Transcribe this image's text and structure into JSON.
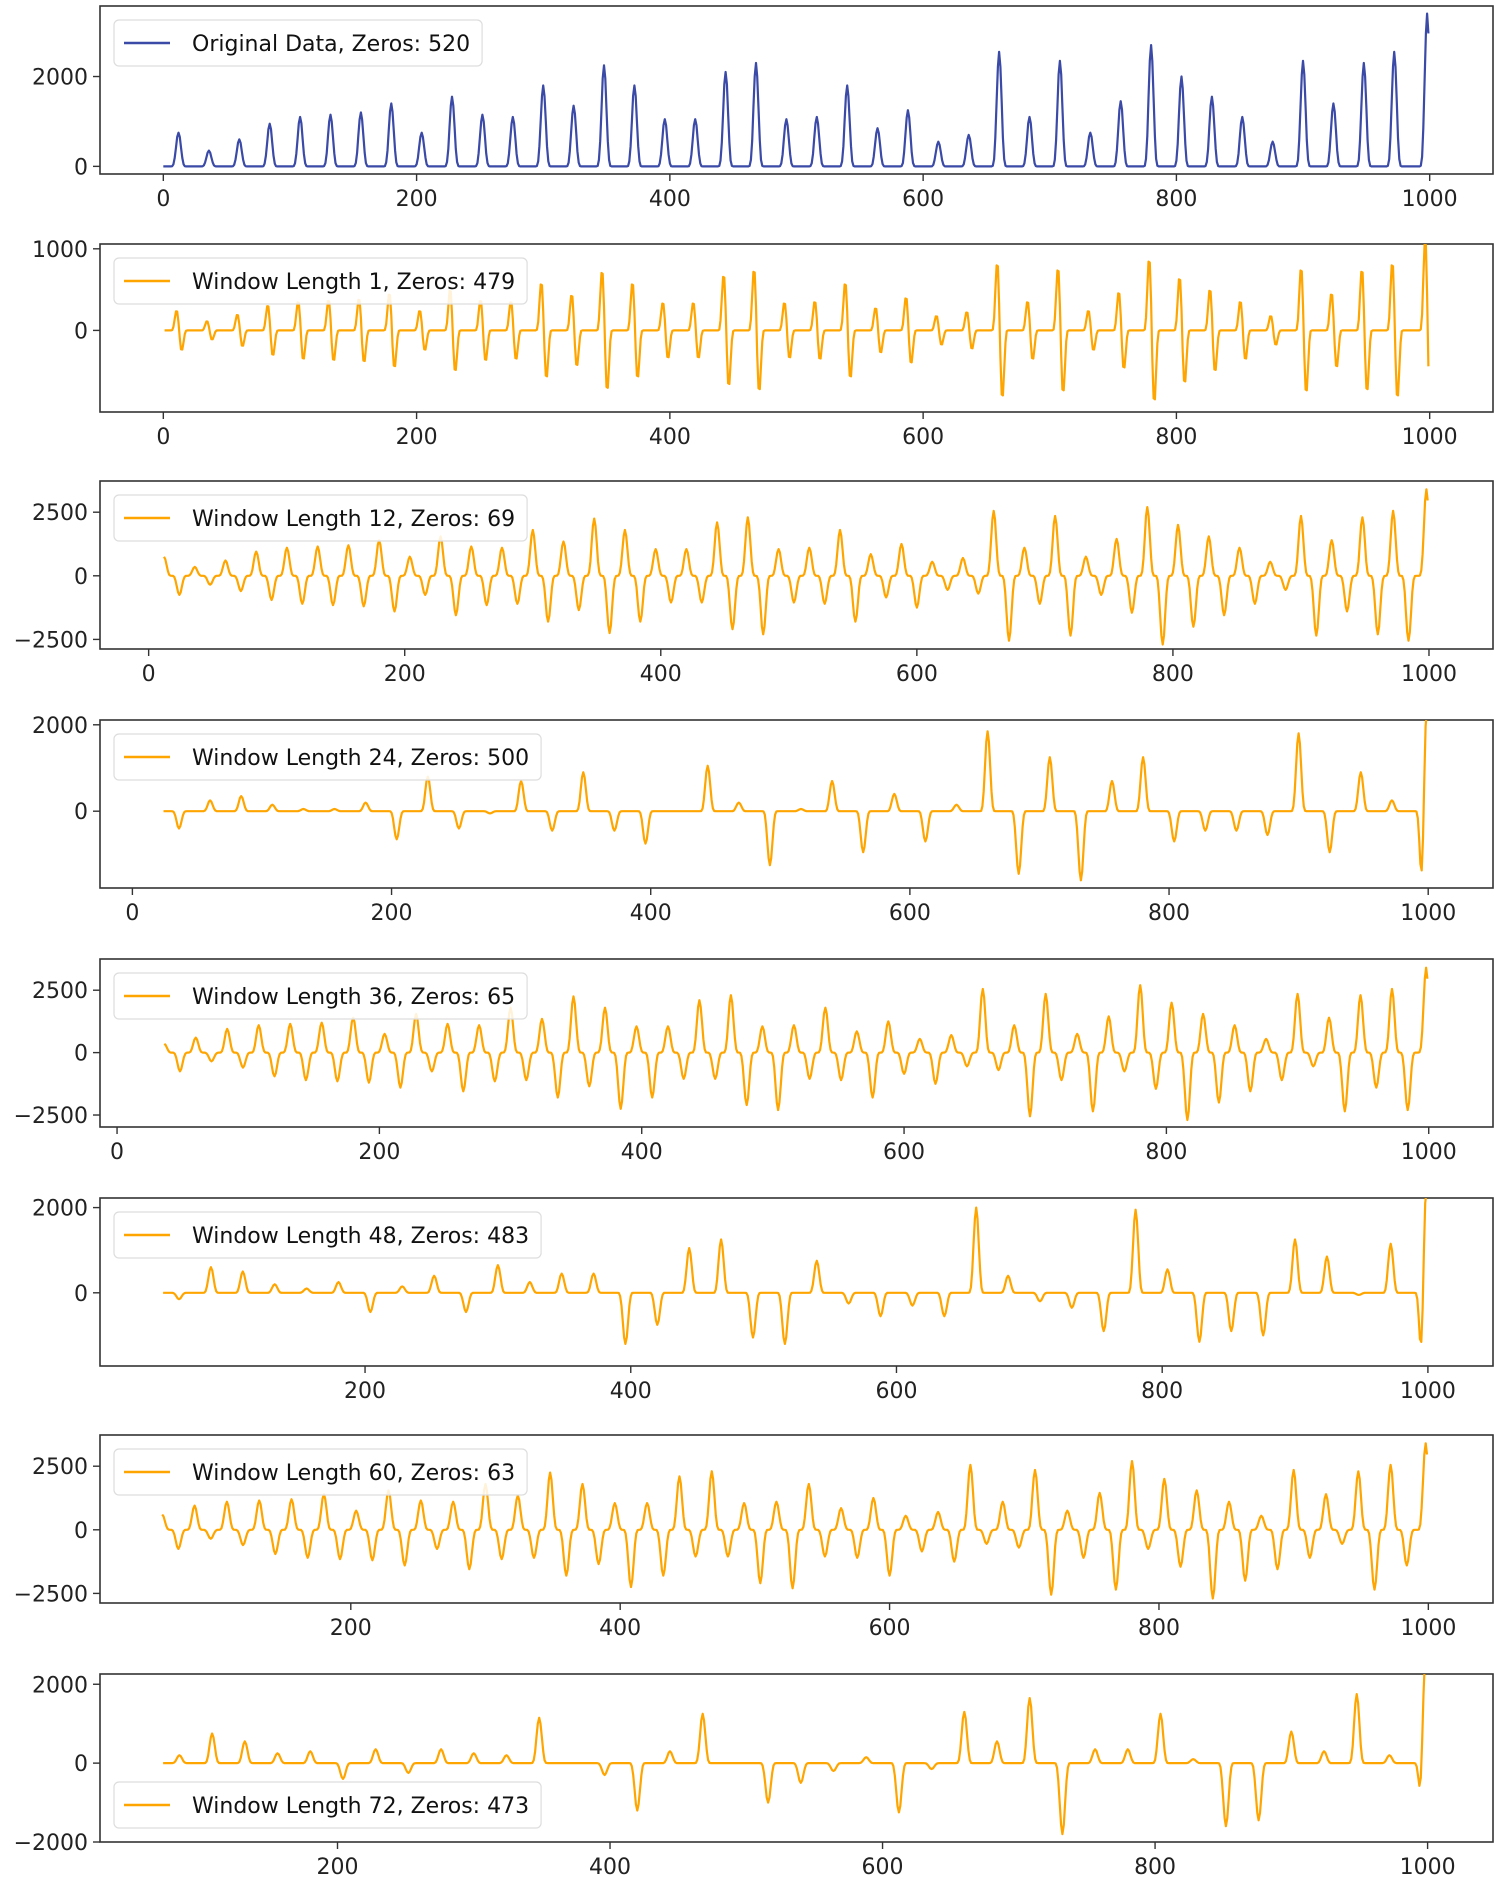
{
  "chart_data": {
    "type": "line",
    "layout": "8 stacked subplots",
    "grid": false,
    "colors": {
      "original": "#3a4aa6",
      "windowed": "#ffa500"
    },
    "original_peaks": {
      "x": [
        12,
        36,
        60,
        84,
        108,
        132,
        156,
        180,
        204,
        228,
        252,
        276,
        300,
        324,
        348,
        372,
        396,
        420,
        444,
        468,
        492,
        516,
        540,
        564,
        588,
        612,
        636,
        660,
        684,
        708,
        732,
        756,
        780,
        804,
        828,
        852,
        876,
        900,
        924,
        948,
        972,
        998
      ],
      "height": [
        750,
        350,
        600,
        950,
        1100,
        1150,
        1200,
        1400,
        750,
        1550,
        1150,
        1100,
        1800,
        1350,
        2250,
        1800,
        1050,
        1050,
        2100,
        2300,
        1050,
        1100,
        1800,
        850,
        1250,
        550,
        700,
        2550,
        1100,
        2350,
        750,
        1450,
        2700,
        2000,
        1550,
        1100,
        550,
        2350,
        1400,
        2300,
        2550,
        3400
      ]
    },
    "x_range": [
      0,
      1000
    ],
    "panels": [
      {
        "legend": "Original Data, Zeros: 520",
        "window": 0,
        "legend_loc": "upper-left",
        "xlim": [
          -50,
          1050
        ],
        "ylim": [
          -170,
          3570
        ],
        "xticks": [
          0,
          200,
          400,
          600,
          800,
          1000
        ],
        "xtick_labels": [
          "0",
          "200",
          "400",
          "600",
          "800",
          "1000"
        ],
        "yticks": [
          0,
          2000
        ],
        "ytick_labels": [
          "0",
          "2000"
        ]
      },
      {
        "legend": "Window Length 1, Zeros: 479",
        "window": 1,
        "legend_loc": "upper-left",
        "xlim": [
          -50,
          1050
        ],
        "ylim": [
          -1000,
          1059
        ],
        "xticks": [
          0,
          200,
          400,
          600,
          800,
          1000
        ],
        "xtick_labels": [
          "0",
          "200",
          "400",
          "600",
          "800",
          "1000"
        ],
        "yticks": [
          0,
          1000
        ],
        "ytick_labels": [
          "0",
          "1000"
        ]
      },
      {
        "legend": "Window Length 12, Zeros: 69",
        "window": 12,
        "legend_loc": "upper-left",
        "xlim": [
          -38,
          1050
        ],
        "ylim": [
          -2877,
          3726
        ],
        "xticks": [
          0,
          200,
          400,
          600,
          800,
          1000
        ],
        "xtick_labels": [
          "0",
          "200",
          "400",
          "600",
          "800",
          "1000"
        ],
        "yticks": [
          -2500,
          0,
          2500
        ],
        "ytick_labels": [
          "−2500",
          "0",
          "2500"
        ]
      },
      {
        "legend": "Window Length 24, Zeros: 500",
        "window": 24,
        "legend_loc": "upper-left",
        "xlim": [
          -25,
          1050
        ],
        "ylim": [
          -1778,
          2111
        ],
        "xticks": [
          0,
          200,
          400,
          600,
          800,
          1000
        ],
        "xtick_labels": [
          "0",
          "200",
          "400",
          "600",
          "800",
          "1000"
        ],
        "yticks": [
          0,
          2000
        ],
        "ytick_labels": [
          "0",
          "2000"
        ]
      },
      {
        "legend": "Window Length 36, Zeros: 65",
        "window": 36,
        "legend_loc": "upper-left",
        "xlim": [
          -13,
          1049
        ],
        "ylim": [
          -2980,
          3750
        ],
        "xticks": [
          0,
          200,
          400,
          600,
          800,
          1000
        ],
        "xtick_labels": [
          "0",
          "200",
          "400",
          "600",
          "800",
          "1000"
        ],
        "yticks": [
          -2500,
          0,
          2500
        ],
        "ytick_labels": [
          "−2500",
          "0",
          "2500"
        ]
      },
      {
        "legend": "Window Length 48, Zeros: 483",
        "window": 48,
        "legend_loc": "upper-left",
        "xlim": [
          0.5,
          1049
        ],
        "ylim": [
          -1718,
          2225
        ],
        "xticks": [
          200,
          400,
          600,
          800,
          1000
        ],
        "xtick_labels": [
          "200",
          "400",
          "600",
          "800",
          "1000"
        ],
        "yticks": [
          0,
          2000
        ],
        "ytick_labels": [
          "0",
          "2000"
        ]
      },
      {
        "legend": "Window Length 60, Zeros: 63",
        "window": 60,
        "legend_loc": "upper-left",
        "xlim": [
          13.8,
          1048
        ],
        "ylim": [
          -2877,
          3726
        ],
        "xticks": [
          200,
          400,
          600,
          800,
          1000
        ],
        "xtick_labels": [
          "200",
          "400",
          "600",
          "800",
          "1000"
        ],
        "yticks": [
          -2500,
          0,
          2500
        ],
        "ytick_labels": [
          "−2500",
          "0",
          "2500"
        ]
      },
      {
        "legend": "Window Length 72, Zeros: 473",
        "window": 72,
        "legend_loc": "lower-left",
        "xlim": [
          25.7,
          1048
        ],
        "ylim": [
          -2000,
          2260
        ],
        "xticks": [
          200,
          400,
          600,
          800,
          1000
        ],
        "xtick_labels": [
          "200",
          "400",
          "600",
          "800",
          "1000"
        ],
        "yticks": [
          -2000,
          0,
          2000
        ],
        "ytick_labels": [
          "−2000",
          "0",
          "2000"
        ]
      }
    ]
  }
}
